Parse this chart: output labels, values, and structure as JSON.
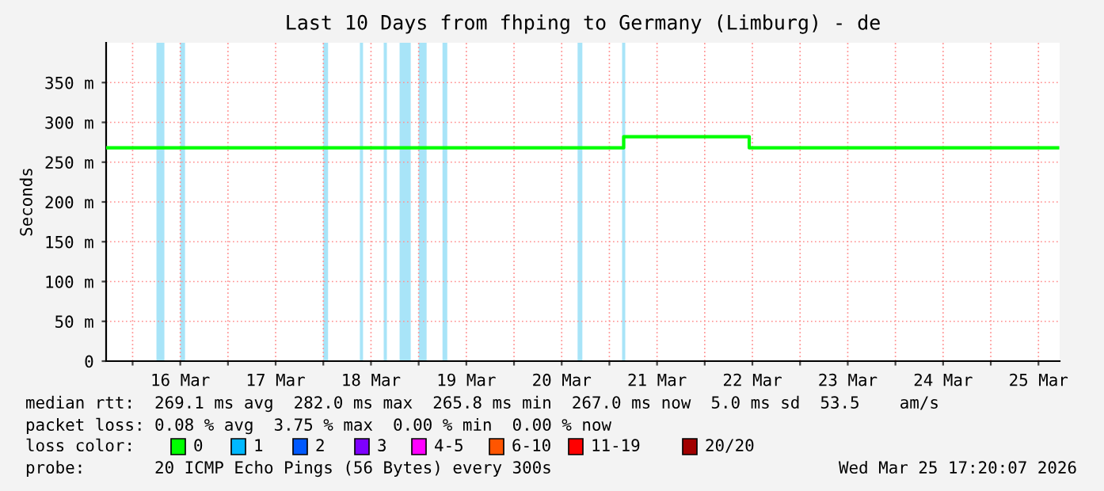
{
  "chart_data": {
    "type": "step",
    "title": "Last 10 Days from fhping to Germany (Limburg) - de",
    "ylabel": "Seconds",
    "x": [
      "2026-03-15T17:40",
      "2026-03-21T03:36",
      "2026-03-22T11:12",
      "2026-03-25T16:50"
    ],
    "series": [
      {
        "color": "#00ff00",
        "values": [
          268,
          282,
          268,
          268
        ]
      }
    ],
    "xlim": [
      "2026-03-15T17:20",
      "2026-03-25T17:20"
    ],
    "xticks": [
      {
        "value": "2026-03-16",
        "label": null
      },
      {
        "value": "2026-03-16T12:00",
        "label": "16 Mar"
      },
      {
        "value": "2026-03-17",
        "label": null
      },
      {
        "value": "2026-03-17T12:00",
        "label": "17 Mar"
      },
      {
        "value": "2026-03-18",
        "label": null
      },
      {
        "value": "2026-03-18T12:00",
        "label": "18 Mar"
      },
      {
        "value": "2026-03-19",
        "label": null
      },
      {
        "value": "2026-03-19T12:00",
        "label": "19 Mar"
      },
      {
        "value": "2026-03-20",
        "label": null
      },
      {
        "value": "2026-03-20T12:00",
        "label": "20 Mar"
      },
      {
        "value": "2026-03-21",
        "label": null
      },
      {
        "value": "2026-03-21T12:00",
        "label": "21 Mar"
      },
      {
        "value": "2026-03-22",
        "label": null
      },
      {
        "value": "2026-03-22T12:00",
        "label": "22 Mar"
      },
      {
        "value": "2026-03-23",
        "label": null
      },
      {
        "value": "2026-03-23T12:00",
        "label": "23 Mar"
      },
      {
        "value": "2026-03-24",
        "label": null
      },
      {
        "value": "2026-03-24T12:00",
        "label": "24 Mar"
      },
      {
        "value": "2026-03-25",
        "label": null
      },
      {
        "value": "2026-03-25T12:00",
        "label": "25 Mar"
      }
    ],
    "ylim": [
      0,
      400
    ],
    "yticks": [
      0,
      {
        "value": 50,
        "label": "50 m"
      },
      {
        "value": 100,
        "label": "100 m"
      },
      {
        "value": 150,
        "label": "150 m"
      },
      {
        "value": 200,
        "label": "200 m"
      },
      {
        "value": 250,
        "label": "250 m"
      },
      {
        "value": 300,
        "label": "300 m"
      },
      {
        "value": 350,
        "label": "350 m"
      }
    ],
    "grid": true,
    "bands": [
      {
        "axis": "x",
        "from": "2026-03-16T06:00",
        "to": "2026-03-16T08:00",
        "color": "#a8e4f8"
      },
      {
        "axis": "x",
        "from": "2026-03-16T12:00",
        "to": "2026-03-16T13:12",
        "color": "#a8e4f8"
      },
      {
        "axis": "x",
        "from": "2026-03-18T00:00",
        "to": "2026-03-18T01:12",
        "color": "#a8e4f8"
      },
      {
        "axis": "x",
        "from": "2026-03-18T09:12",
        "to": "2026-03-18T10:00",
        "color": "#a8e4f8"
      },
      {
        "axis": "x",
        "from": "2026-03-18T15:12",
        "to": "2026-03-18T16:00",
        "color": "#a8e4f8"
      },
      {
        "axis": "x",
        "from": "2026-03-18T19:12",
        "to": "2026-03-18T22:00",
        "color": "#a8e4f8"
      },
      {
        "axis": "x",
        "from": "2026-03-19T00:00",
        "to": "2026-03-19T02:00",
        "color": "#a8e4f8"
      },
      {
        "axis": "x",
        "from": "2026-03-19T06:00",
        "to": "2026-03-19T07:12",
        "color": "#a8e4f8"
      },
      {
        "axis": "x",
        "from": "2026-03-20T16:00",
        "to": "2026-03-20T17:12",
        "color": "#a8e4f8"
      },
      {
        "axis": "x",
        "from": "2026-03-21T03:12",
        "to": "2026-03-21T04:00",
        "color": "#a8e4f8"
      }
    ],
    "annotations": [
      "median rtt:  269.1 ms avg  282.0 ms max  265.8 ms min  267.0 ms now  5.0 ms sd  53.5    am/s",
      "packet loss: 0.08 % avg  3.75 % max  0.00 % min  0.00 % now",
      "loss color:",
      "0",
      "1",
      "2",
      "3",
      "4-5",
      "6-10",
      "11-19",
      "20/20",
      "probe:       20 ICMP Echo Pings (56 Bytes) every 300s",
      "Wed Mar 25 17:20:07 2026"
    ]
  }
}
